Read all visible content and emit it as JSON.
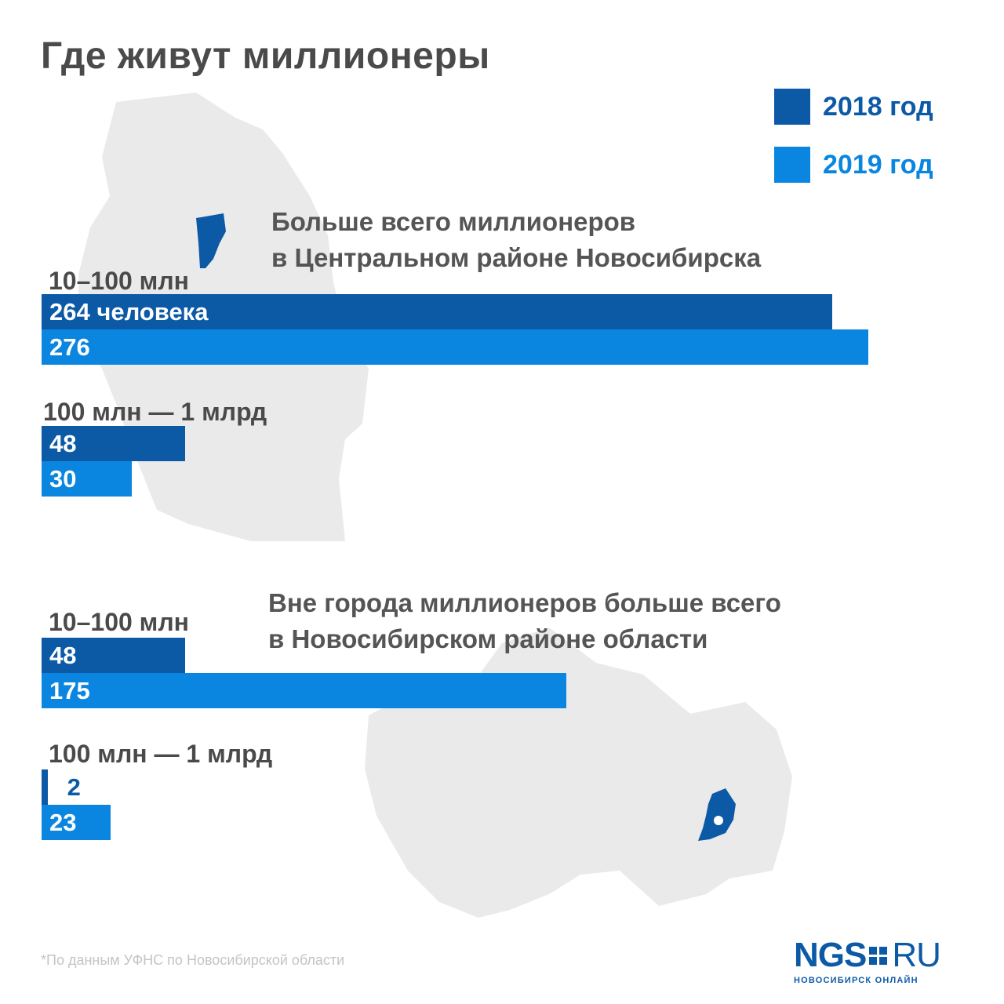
{
  "title": "Где живут миллионеры",
  "colors": {
    "dark": "#0c5aa6",
    "light": "#0a86e0",
    "map": "#eaeaea",
    "text": "#4a4a4a"
  },
  "legend": [
    {
      "label": "2018 год",
      "color": "#0c5aa6"
    },
    {
      "label": "2019 год",
      "color": "#0a86e0"
    }
  ],
  "chart_data": {
    "type": "bar",
    "orientation": "horizontal",
    "title": "Где живут миллионеры",
    "series_names": [
      "2018 год",
      "2019 год"
    ],
    "sections": [
      {
        "heading_line1": "Больше всего миллионеров",
        "heading_line2": "в Центральном районе Новосибирска",
        "groups": [
          {
            "category": "10–100 млн",
            "values": [
              264,
              276
            ],
            "labels": [
              "264 человека",
              "276"
            ]
          },
          {
            "category": "100 млн — 1 млрд",
            "values": [
              48,
              30
            ],
            "labels": [
              "48",
              "30"
            ]
          }
        ]
      },
      {
        "heading_line1": "Вне города миллионеров больше всего",
        "heading_line2": "в Новосибирском районе области",
        "groups": [
          {
            "category": "10–100 млн",
            "values": [
              48,
              175
            ],
            "labels": [
              "48",
              "175"
            ]
          },
          {
            "category": "100 млн — 1 млрд",
            "values": [
              2,
              23
            ],
            "labels": [
              "2",
              "23"
            ]
          }
        ]
      }
    ]
  },
  "footnote": "*По данным УФНС по Новосибирской области",
  "logo": {
    "main": "NGS",
    "suffix": "RU",
    "subtitle": "НОВОСИБИРСК ОНЛАЙН"
  }
}
